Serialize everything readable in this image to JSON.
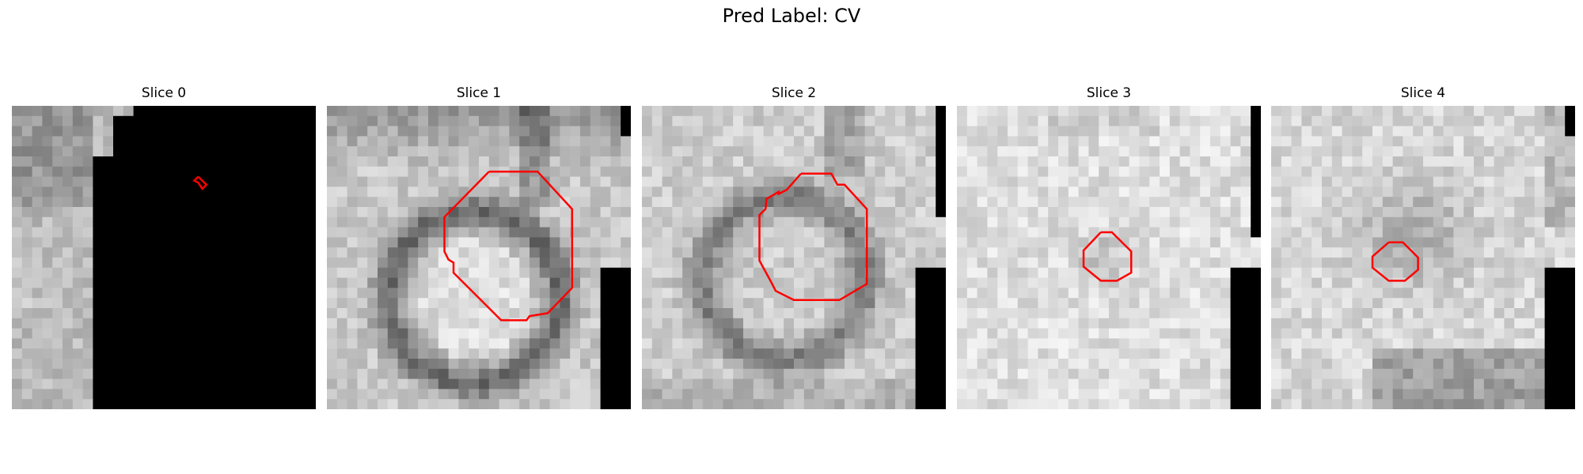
{
  "figure": {
    "title": "Pred Label: CV"
  },
  "panels": [
    {
      "title": "Slice 0",
      "seed": 11,
      "contour": "small-diamond"
    },
    {
      "title": "Slice 1",
      "seed": 23,
      "contour": "large-octagon"
    },
    {
      "title": "Slice 2",
      "seed": 37,
      "contour": "large-octagon-2"
    },
    {
      "title": "Slice 3",
      "seed": 51,
      "contour": "small-octagon"
    },
    {
      "title": "Slice 4",
      "seed": 67,
      "contour": "small-octagon-2"
    }
  ],
  "colors": {
    "contour": "#ff0000",
    "background": "#ffffff",
    "mask": "#000000"
  }
}
